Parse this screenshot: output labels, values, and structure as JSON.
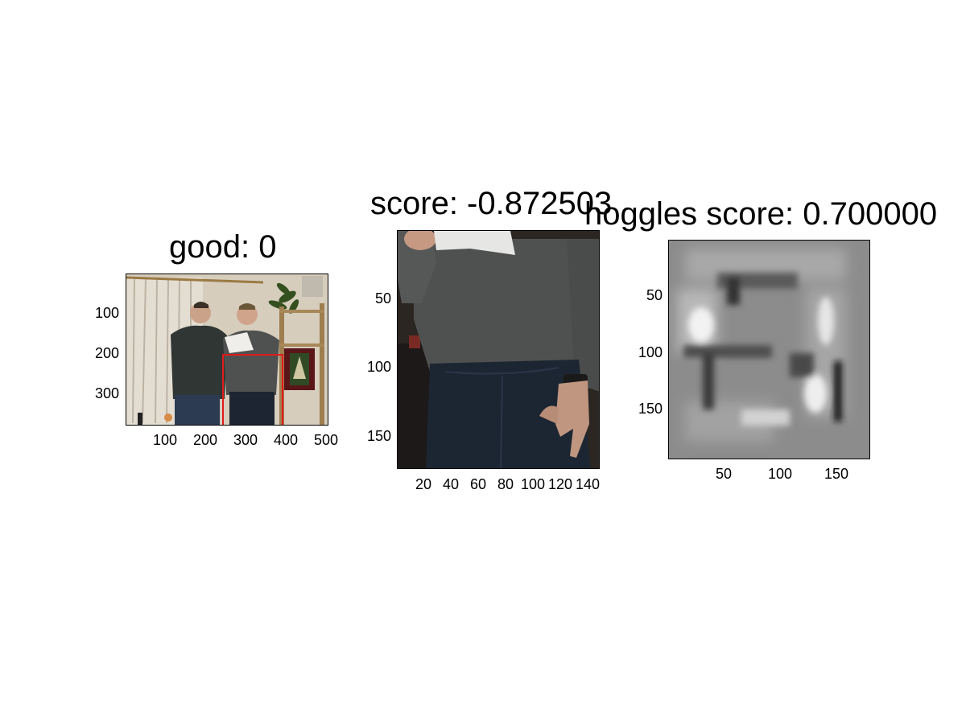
{
  "panels": [
    {
      "title": "good: 0",
      "yticks": [
        "100",
        "200",
        "300"
      ],
      "xticks": [
        "100",
        "200",
        "300",
        "400",
        "500"
      ]
    },
    {
      "title": "score: -0.872503",
      "yticks": [
        "50",
        "100",
        "150"
      ],
      "xticks": [
        "20",
        "40",
        "60",
        "80",
        "100",
        "120",
        "140"
      ]
    },
    {
      "title": "hoggles score: 0.700000",
      "yticks": [
        "50",
        "100",
        "150"
      ],
      "xticks": [
        "50",
        "100",
        "150"
      ]
    }
  ],
  "colors": {
    "box": "#e31a1a",
    "shirt": "#4f5150",
    "jeans": "#1c2532",
    "wall": "#d7cdbc"
  }
}
